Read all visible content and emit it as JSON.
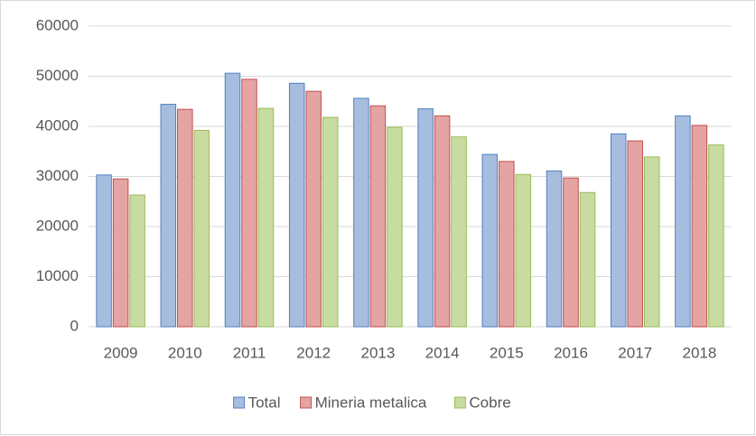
{
  "chart_data": {
    "type": "bar",
    "categories": [
      "2009",
      "2010",
      "2011",
      "2012",
      "2013",
      "2014",
      "2015",
      "2016",
      "2017",
      "2018"
    ],
    "series": [
      {
        "name": "Total",
        "color": "#4f81bd",
        "fill": "#a7bde0",
        "values": [
          30300,
          44400,
          50600,
          48600,
          45600,
          43500,
          34400,
          31100,
          38500,
          42100
        ]
      },
      {
        "name": "Mineria metalica",
        "color": "#c0504d",
        "fill": "#e4a4a3",
        "values": [
          29500,
          43400,
          49400,
          47000,
          44100,
          42100,
          33000,
          29700,
          37100,
          40200
        ]
      },
      {
        "name": "Cobre",
        "color": "#9bbb59",
        "fill": "#c8dca2",
        "values": [
          26300,
          39200,
          43600,
          41800,
          39800,
          37900,
          30400,
          26800,
          33900,
          36300
        ]
      }
    ],
    "ylim": [
      0,
      60000
    ],
    "yticks": [
      0,
      10000,
      20000,
      30000,
      40000,
      50000,
      60000
    ],
    "grid": true,
    "legend": "bottom"
  }
}
